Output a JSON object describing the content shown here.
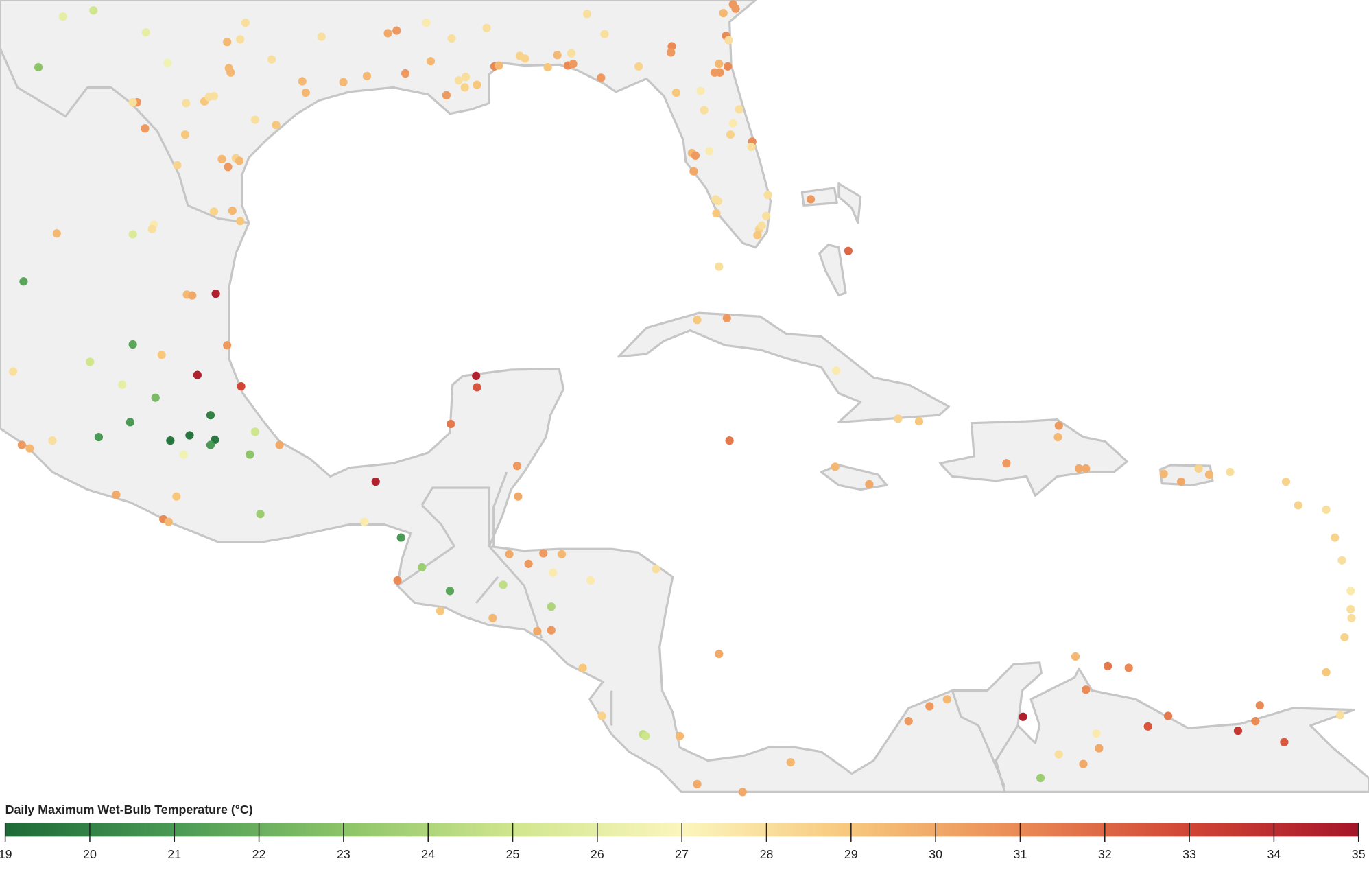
{
  "legend": {
    "title": "Daily Maximum Wet-Bulb Temperature (°C)",
    "ticks": [
      19,
      20,
      21,
      22,
      23,
      24,
      25,
      26,
      27,
      28,
      29,
      30,
      31,
      32,
      33,
      34,
      35
    ],
    "colors": [
      "#1d6a37",
      "#4a9a55",
      "#8cc468",
      "#d0e68e",
      "#fbf6bd",
      "#f7c77c",
      "#ea8a55",
      "#d04535",
      "#a5152a"
    ]
  },
  "stations": {
    "values": [
      26,
      25,
      26,
      23,
      26.5,
      29.5,
      28,
      28,
      28,
      28,
      30,
      30.5,
      27.5,
      28,
      28,
      29.5,
      29.5,
      30.5,
      28,
      28,
      29,
      28,
      28,
      30.5,
      29,
      28,
      29,
      29.5,
      29.5,
      29.5,
      29.5,
      30.5,
      29.5,
      28,
      28,
      28.5,
      30.5,
      29,
      31,
      29.5,
      28.5,
      28.5,
      29,
      29.5,
      31,
      30.5,
      28,
      28,
      28,
      30.5,
      28.5,
      31,
      30.5,
      29.5,
      30.5,
      30.5,
      31,
      28,
      29.5,
      30.5,
      30.5,
      31,
      29,
      27.5,
      28,
      28,
      27.5,
      28.5,
      31,
      28,
      29.5,
      30.5,
      27.5,
      30,
      28,
      28,
      28,
      29,
      28,
      28.5,
      28,
      29,
      28,
      30.5,
      32,
      28.5,
      29.5,
      30.5,
      28.5,
      29.5,
      28.5,
      29.5,
      29,
      29.5,
      25.5,
      27.5,
      28,
      21.5,
      29.5,
      30,
      34.5,
      21.5,
      29,
      25,
      28,
      30.5,
      34.5,
      33,
      26,
      22.5,
      21,
      20,
      21,
      19.5,
      19.5,
      19.5,
      21,
      25,
      23,
      26.5,
      30.5,
      29.5,
      28,
      30,
      29,
      31,
      29.5,
      23.5,
      30,
      34.5,
      27.5,
      21,
      23.5,
      21.5,
      31,
      29,
      34.5,
      32.5,
      31.5,
      30.5,
      30,
      30,
      30.5,
      30.5,
      29.5,
      27.5,
      27.5,
      24.5,
      24,
      29.5,
      30,
      30.5,
      29,
      28,
      28.5,
      24.5,
      25,
      29.5,
      30,
      30,
      29.5,
      29,
      30.5,
      27.5,
      28.5,
      29,
      31.5,
      29.5,
      30,
      30.5,
      29.5,
      30.5,
      30,
      30,
      29.5,
      30,
      28.5,
      29.5,
      28,
      28.5,
      28.5,
      28,
      28.5,
      28,
      27.5,
      28,
      28,
      28.5,
      29,
      28,
      30,
      29.5,
      31.5,
      31,
      31,
      29.5,
      30.5,
      30.5,
      34.5,
      32.5,
      31.5,
      31,
      31,
      33.5,
      32.5,
      27.5,
      30,
      28,
      30,
      23.5
    ]
  }
}
